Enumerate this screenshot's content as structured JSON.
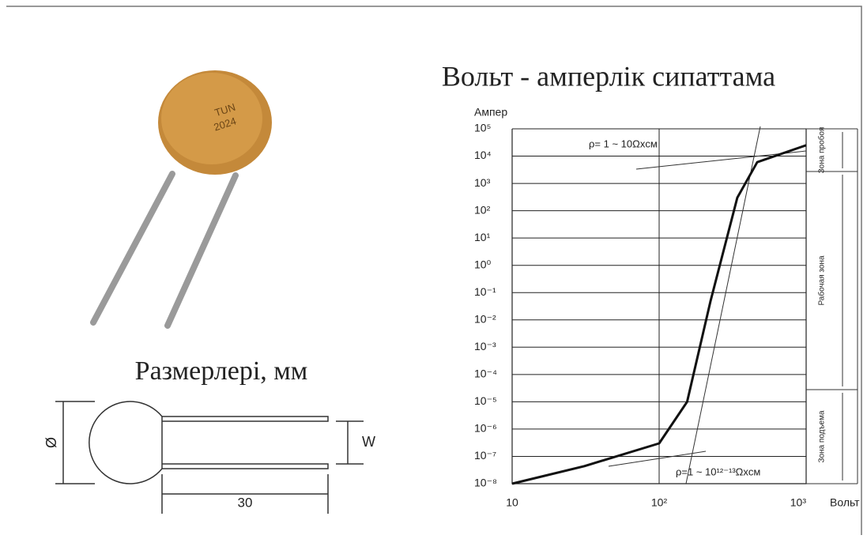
{
  "chart_data": {
    "type": "line",
    "title": "Вольт - амперлік сипаттама",
    "y_label": "Ампер",
    "x_label": "Вольт",
    "log_x": true,
    "log_y": true,
    "xlim": [
      10,
      1000
    ],
    "ylim": [
      1e-08,
      100000
    ],
    "xticks": [
      10,
      {
        "value": 100,
        "label": "10²"
      },
      {
        "value": 1000,
        "label": "10³"
      }
    ],
    "yticks": [
      {
        "value": 100000,
        "label": "10⁵"
      },
      {
        "value": 10000,
        "label": "10⁴"
      },
      {
        "value": 1000,
        "label": "10³"
      },
      {
        "value": 100,
        "label": "10²"
      },
      {
        "value": 10,
        "label": "10¹"
      },
      {
        "value": 1,
        "label": "10⁰"
      },
      {
        "value": 0.1,
        "label": "10⁻¹"
      },
      {
        "value": 0.01,
        "label": "10⁻²"
      },
      {
        "value": 0.001,
        "label": "10⁻³"
      },
      {
        "value": 0.0001,
        "label": "10⁻⁴"
      },
      {
        "value": 1e-05,
        "label": "10⁻⁵"
      },
      {
        "value": 1e-06,
        "label": "10⁻⁶"
      },
      {
        "value": 1e-07,
        "label": "10⁻⁷"
      },
      {
        "value": 1e-08,
        "label": "10⁻⁸"
      }
    ],
    "x": [
      10,
      31,
      100,
      155,
      224,
      340,
      465,
      1000
    ],
    "values": [
      1e-08,
      4.4e-08,
      3e-07,
      1e-05,
      0.05,
      300,
      6000,
      25000
    ],
    "color": "#111111",
    "grid": "y",
    "annotations": [
      "ρ= 1 ~ 10Ωxcм",
      "ρ=1 ~ 10¹²⁻¹³Ωxcм"
    ],
    "zones": [
      "Зона пробоя",
      "Рабочая зона",
      "Зона подъема"
    ]
  },
  "dimensions": {
    "title": "Размерлері, мм",
    "diameter": "Ø",
    "width": "W",
    "length": 30
  }
}
